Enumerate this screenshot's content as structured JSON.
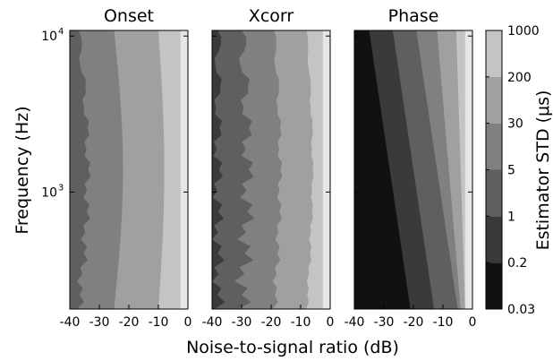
{
  "chart_data": [
    {
      "type": "heatmap",
      "title": "Onset",
      "x_levels_dB": [
        -40,
        -30,
        -20,
        -10,
        0
      ],
      "contour_boundaries_dB": {
        "1_to_5_us": -35,
        "5_to_30_us": -23,
        "30_to_200_us": -9
      }
    },
    {
      "type": "heatmap",
      "title": "Xcorr",
      "x_levels_dB": [
        -40,
        -30,
        -20,
        -10,
        0
      ],
      "contour_boundaries_dB": {
        "0.03_to_1_us": -38,
        "1_to_5_us": -29,
        "5_to_30_us": -18,
        "30_to_200_us": -7
      }
    },
    {
      "type": "heatmap",
      "title": "Phase",
      "x_levels_dB": [
        -40,
        -30,
        -20,
        -10,
        0
      ],
      "contour_boundaries_dB": {
        "0.03_to_0.2_us": -30,
        "0.2_to_1_us": -22,
        "1_to_5_us": -14,
        "5_to_30_us": -8,
        "30_to_200_us": -4
      }
    }
  ],
  "axes": {
    "xlabel": "Noise-to-signal ratio (dB)",
    "ylabel": "Frequency (Hz)",
    "xlim": [
      -40,
      0
    ],
    "x_ticks": [
      "-40",
      "-30",
      "-20",
      "-10",
      "0"
    ],
    "y_scale": "log",
    "y_ticks": [
      {
        "base": "10",
        "exp": "4"
      },
      {
        "base": "10",
        "exp": "3"
      }
    ]
  },
  "colorbar": {
    "label": "Estimator STD (μs)",
    "levels": [
      "0.03",
      "0.2",
      "1",
      "5",
      "30",
      "200",
      "1000"
    ],
    "colors": [
      "#111111",
      "#3a3a3a",
      "#5f5f5f",
      "#808080",
      "#a0a0a0",
      "#c4c4c4",
      "#e6e6e6"
    ]
  }
}
